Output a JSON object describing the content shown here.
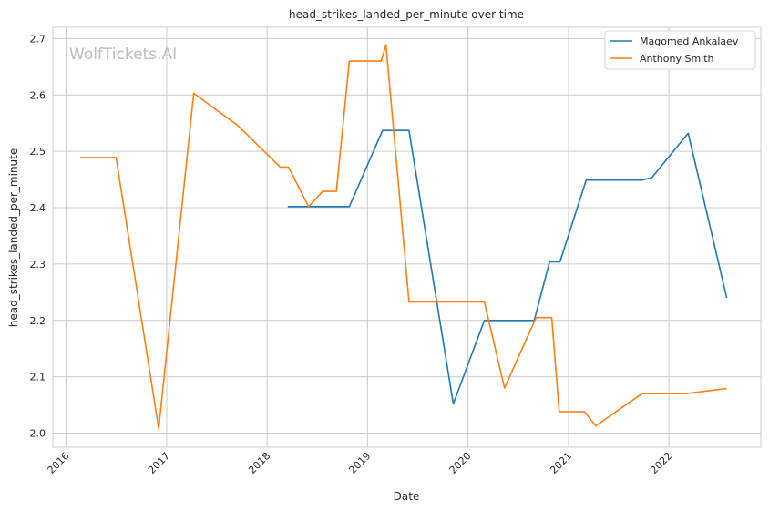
{
  "chart_data": {
    "type": "line",
    "title": "head_strikes_landed_per_minute over time",
    "xlabel": "Date",
    "ylabel": "head_strikes_landed_per_minute",
    "watermark": "WolfTickets.AI",
    "grid": true,
    "legend_position": "top-right",
    "x_ticks": [
      "2016",
      "2017",
      "2018",
      "2019",
      "2020",
      "2021",
      "2022"
    ],
    "y_ticks": [
      "2.0",
      "2.1",
      "2.2",
      "2.3",
      "2.4",
      "2.5",
      "2.6",
      "2.7"
    ],
    "xlim": [
      "2015-11-14",
      "2022-12-01"
    ],
    "ylim": [
      1.975,
      2.72
    ],
    "series": [
      {
        "name": "Magomed Ankalaev",
        "color": "#1f77b4",
        "points": [
          [
            "2018-03-17",
            2.402
          ],
          [
            "2018-06-01",
            2.402
          ],
          [
            "2018-10-27",
            2.402
          ],
          [
            "2019-02-25",
            2.537
          ],
          [
            "2019-06-01",
            2.537
          ],
          [
            "2019-11-09",
            2.052
          ],
          [
            "2020-03-01",
            2.2
          ],
          [
            "2020-08-29",
            2.2
          ],
          [
            "2020-10-24",
            2.304
          ],
          [
            "2020-12-01",
            2.304
          ],
          [
            "2021-03-06",
            2.449
          ],
          [
            "2021-09-25",
            2.449
          ],
          [
            "2021-10-30",
            2.453
          ],
          [
            "2022-03-12",
            2.532
          ],
          [
            "2022-07-30",
            2.24
          ]
        ]
      },
      {
        "name": "Anthony Smith",
        "color": "#ff7f0e",
        "points": [
          [
            "2016-02-21",
            2.489
          ],
          [
            "2016-07-01",
            2.489
          ],
          [
            "2016-12-03",
            2.008
          ],
          [
            "2017-04-09",
            2.603
          ],
          [
            "2017-09-16",
            2.546
          ],
          [
            "2018-02-18",
            2.472
          ],
          [
            "2018-03-20",
            2.472
          ],
          [
            "2018-06-01",
            2.402
          ],
          [
            "2018-07-22",
            2.429
          ],
          [
            "2018-09-10",
            2.429
          ],
          [
            "2018-10-27",
            2.66
          ],
          [
            "2019-02-20",
            2.66
          ],
          [
            "2019-03-09",
            2.689
          ],
          [
            "2019-06-01",
            2.233
          ],
          [
            "2020-03-01",
            2.233
          ],
          [
            "2020-05-13",
            2.08
          ],
          [
            "2020-09-05",
            2.205
          ],
          [
            "2020-11-01",
            2.205
          ],
          [
            "2020-11-28",
            2.038
          ],
          [
            "2021-02-28",
            2.038
          ],
          [
            "2021-04-10",
            2.013
          ],
          [
            "2021-09-25",
            2.07
          ],
          [
            "2022-03-01",
            2.07
          ],
          [
            "2022-07-30",
            2.079
          ]
        ]
      }
    ]
  }
}
